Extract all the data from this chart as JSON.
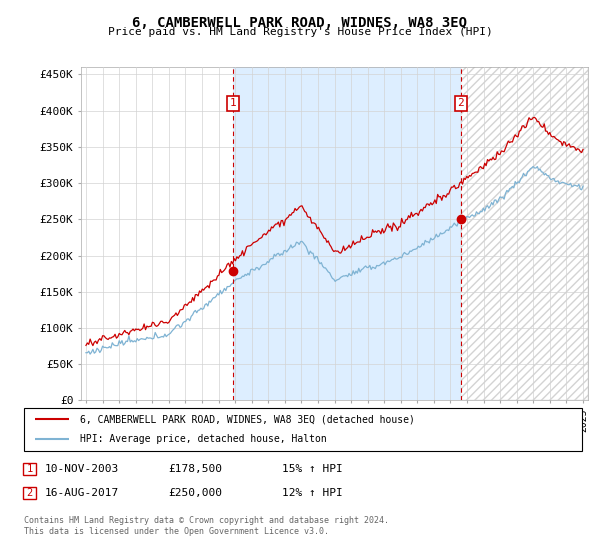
{
  "title": "6, CAMBERWELL PARK ROAD, WIDNES, WA8 3EQ",
  "subtitle": "Price paid vs. HM Land Registry's House Price Index (HPI)",
  "ylabel_ticks": [
    "£0",
    "£50K",
    "£100K",
    "£150K",
    "£200K",
    "£250K",
    "£300K",
    "£350K",
    "£400K",
    "£450K"
  ],
  "ytick_values": [
    0,
    50000,
    100000,
    150000,
    200000,
    250000,
    300000,
    350000,
    400000,
    450000
  ],
  "ylim": [
    0,
    460000
  ],
  "xlim_start": 1994.7,
  "xlim_end": 2025.3,
  "sale1_date": 2003.87,
  "sale1_price": 178500,
  "sale2_date": 2017.62,
  "sale2_price": 250000,
  "red_line_color": "#cc0000",
  "blue_line_color": "#7fb3d3",
  "blue_fill_color": "#ddeeff",
  "annotation_box_color": "#cc0000",
  "legend_label1": "6, CAMBERWELL PARK ROAD, WIDNES, WA8 3EQ (detached house)",
  "legend_label2": "HPI: Average price, detached house, Halton",
  "footnote": "Contains HM Land Registry data © Crown copyright and database right 2024.\nThis data is licensed under the Open Government Licence v3.0.",
  "table_row1": [
    "1",
    "10-NOV-2003",
    "£178,500",
    "15% ↑ HPI"
  ],
  "table_row2": [
    "2",
    "16-AUG-2017",
    "£250,000",
    "12% ↑ HPI"
  ]
}
